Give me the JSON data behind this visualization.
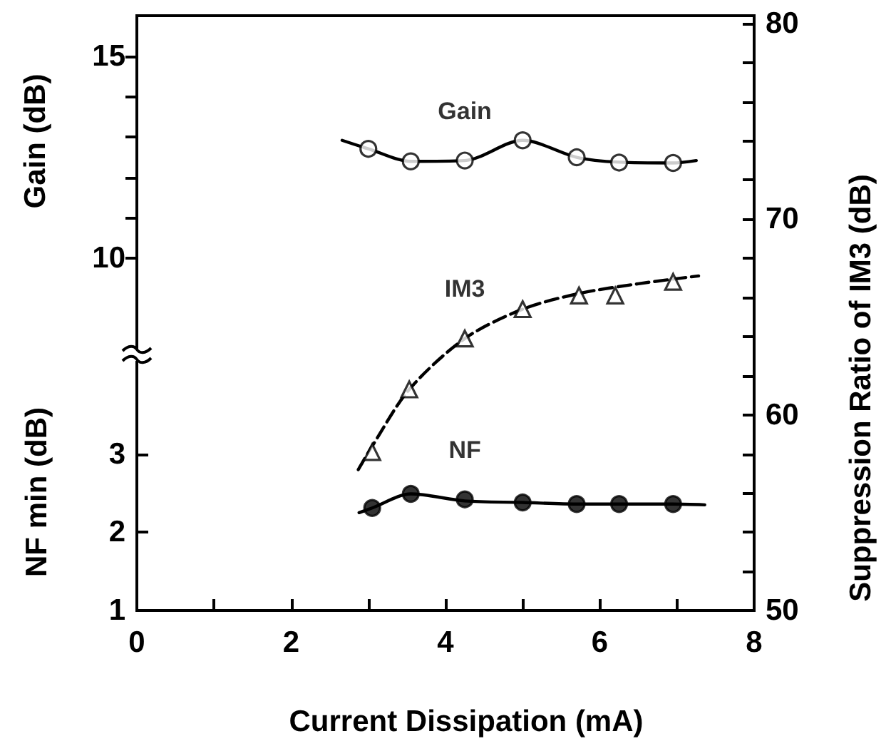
{
  "chart_data": {
    "type": "scatter",
    "xlabel": "Current Dissipation (mA)",
    "ylabel": "NF min (dB)",
    "y2label": "Suppression Ratio of IM3 (dB)",
    "y3label": "Gain (dB)",
    "xlim": [
      0,
      8
    ],
    "xticks": [
      0,
      {
        "value": 1,
        "label": null
      },
      2,
      {
        "value": 3,
        "label": null
      },
      4,
      {
        "value": 5,
        "label": null
      },
      6,
      {
        "value": 7,
        "label": null
      },
      8
    ],
    "ylim": [
      1,
      8.6
    ],
    "yticks": [
      1,
      2,
      3
    ],
    "y3lim": [
      1.3,
      16
    ],
    "y3ticks": [
      10,
      {
        "value": 11,
        "label": null
      },
      {
        "value": 12,
        "label": null
      },
      {
        "value": 13,
        "label": null
      },
      {
        "value": 14,
        "label": null
      },
      15
    ],
    "y2lim": [
      50,
      80.4
    ],
    "y2ticks": [
      50,
      {
        "value": 52,
        "label": null
      },
      {
        "value": 54,
        "label": null
      },
      {
        "value": 56,
        "label": null
      },
      {
        "value": 58,
        "label": null
      },
      60,
      {
        "value": 62,
        "label": null
      },
      {
        "value": 64,
        "label": null
      },
      {
        "value": 66,
        "label": null
      },
      {
        "value": 68,
        "label": null
      },
      70,
      {
        "value": 72,
        "label": null
      },
      {
        "value": 74,
        "label": null
      },
      {
        "value": 76,
        "label": null
      },
      {
        "value": 78,
        "label": null
      },
      80
    ],
    "series": [
      {
        "name": "Gain",
        "axis": "y3",
        "marker": "circle",
        "color": "#ffffff",
        "x": [
          3.0,
          3.55,
          4.25,
          5.0,
          5.7,
          6.25,
          6.95
        ],
        "values": [
          12.71,
          12.4,
          12.42,
          12.92,
          12.5,
          12.37,
          12.36
        ]
      },
      {
        "type": "line",
        "axis": "y3",
        "marker": "none",
        "line_style": "solid",
        "color": "#000000",
        "x": [
          2.66,
          3.0,
          3.55,
          4.25,
          5.0,
          5.7,
          6.25,
          6.95,
          7.25
        ],
        "values": [
          12.92,
          12.71,
          12.4,
          12.42,
          12.92,
          12.5,
          12.38,
          12.36,
          12.42
        ]
      },
      {
        "name": "IM3",
        "axis": "y2",
        "marker": "triangle",
        "color": "#ffffff",
        "x": [
          3.05,
          3.53,
          4.25,
          5.0,
          5.73,
          6.2,
          6.95
        ],
        "values": [
          58.1,
          61.3,
          63.9,
          65.4,
          66.1,
          66.1,
          66.8
        ]
      },
      {
        "type": "line",
        "axis": "y2",
        "marker": "none",
        "line_style": "dashed",
        "color": "#000000",
        "x": [
          2.87,
          3.05,
          3.53,
          4.25,
          5.0,
          5.73,
          6.5,
          7.28
        ],
        "values": [
          57.2,
          58.4,
          61.3,
          63.9,
          65.4,
          66.2,
          66.7,
          67.1
        ]
      },
      {
        "name": "NF",
        "axis": "y",
        "marker": "circle",
        "color": "#000000",
        "x": [
          3.05,
          3.55,
          4.25,
          5.0,
          5.7,
          6.25,
          6.95
        ],
        "values": [
          2.31,
          2.49,
          2.42,
          2.38,
          2.36,
          2.36,
          2.36
        ]
      },
      {
        "type": "line",
        "axis": "y",
        "marker": "none",
        "line_style": "solid",
        "color": "#000000",
        "x": [
          2.88,
          3.05,
          3.55,
          4.25,
          5.0,
          5.7,
          6.25,
          6.95,
          7.36
        ],
        "values": [
          2.25,
          2.31,
          2.49,
          2.4,
          2.38,
          2.36,
          2.36,
          2.36,
          2.35
        ]
      }
    ]
  }
}
